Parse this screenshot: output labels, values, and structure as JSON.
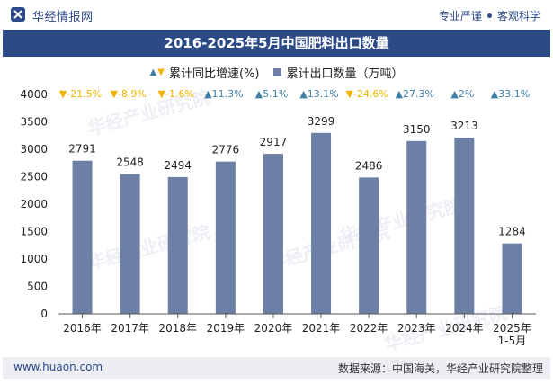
{
  "header": {
    "brand": "华经情报网",
    "tag_left": "专业严谨",
    "tag_right": "客观科学"
  },
  "title": "2016-2025年5月中国肥料出口数量",
  "legend": {
    "growth_label": "累计同比增速(%)",
    "quantity_label": "累计出口数量（万吨）"
  },
  "footer": {
    "site": "www.huaon.com",
    "source": "数据来源：中国海关，华经产业研究院整理"
  },
  "watermark_text": "华经产业研究院",
  "colors": {
    "bar": "#6e7fa6",
    "up": "#3f7fa6",
    "down": "#f0b400",
    "title_bg": "#2c4a86"
  },
  "chart_data": {
    "type": "bar",
    "title": "2016-2025年5月中国肥料出口数量",
    "categories": [
      "2016年",
      "2017年",
      "2018年",
      "2019年",
      "2020年",
      "2021年",
      "2022年",
      "2023年",
      "2024年",
      "2025年\n1-5月"
    ],
    "series": [
      {
        "name": "累计出口数量（万吨）",
        "values": [
          2791,
          2548,
          2494,
          2776,
          2917,
          3299,
          2486,
          3150,
          3213,
          1284
        ]
      },
      {
        "name": "累计同比增速(%)",
        "values": [
          -21.5,
          -8.9,
          -1.6,
          11.3,
          5.1,
          13.1,
          -24.6,
          27.3,
          2,
          33.1
        ],
        "labels": [
          "-21.5%",
          "-8.9%",
          "-1.6%",
          "11.3%",
          "5.1%",
          "13.1%",
          "-24.6%",
          "27.3%",
          "2%",
          "33.1%"
        ]
      }
    ],
    "yticks": [
      0,
      500,
      1000,
      1500,
      2000,
      2500,
      3000,
      3500,
      4000
    ],
    "ylim": [
      0,
      4000
    ],
    "xlabel": "",
    "ylabel": ""
  }
}
